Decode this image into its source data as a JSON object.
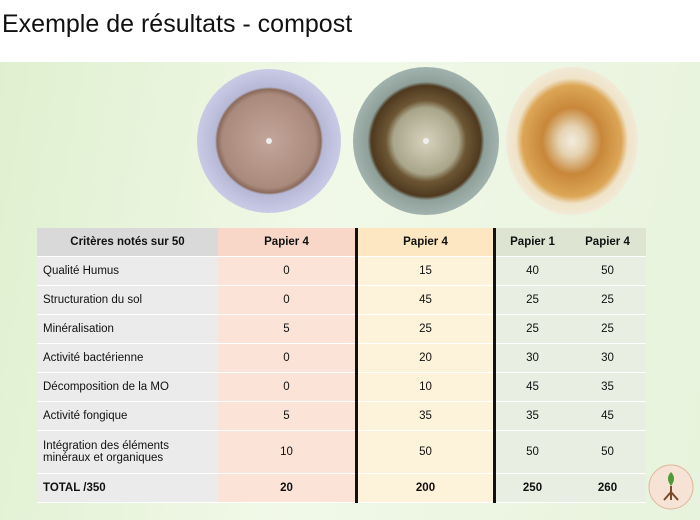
{
  "title": "Exemple de résultats - compost",
  "table": {
    "header": [
      "Critères notés sur 50",
      "Papier 4",
      "Papier 4",
      "Papier 1",
      "Papier 4"
    ],
    "rows": [
      [
        "Qualité Humus",
        "0",
        "15",
        "40",
        "50"
      ],
      [
        "Structuration du sol",
        "0",
        "45",
        "25",
        "25"
      ],
      [
        "Minéralisation",
        "5",
        "25",
        "25",
        "25"
      ],
      [
        "Activité bactérienne",
        "0",
        "20",
        "30",
        "30"
      ],
      [
        "Décomposition de la MO",
        "0",
        "10",
        "45",
        "35"
      ],
      [
        "Activité fongique",
        "5",
        "35",
        "35",
        "45"
      ],
      [
        "Intégration des éléments minéraux et organiques",
        "10",
        "50",
        "50",
        "50"
      ],
      [
        "TOTAL /350",
        "20",
        "200",
        "250",
        "260"
      ]
    ]
  }
}
